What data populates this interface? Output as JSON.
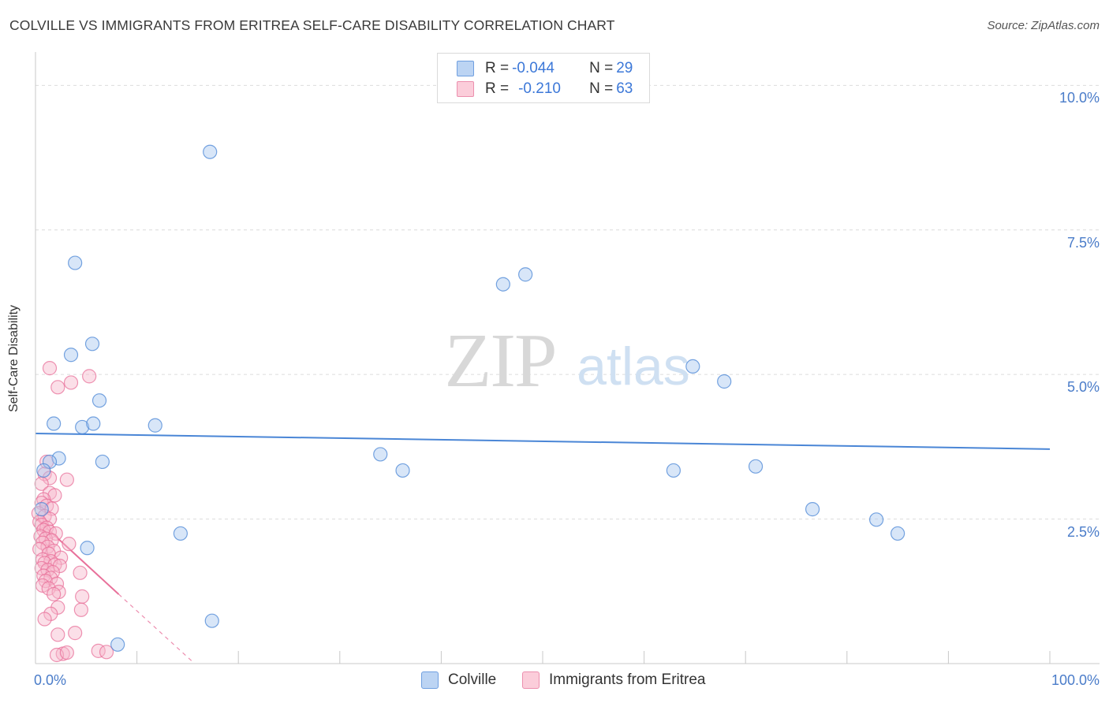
{
  "title": "COLVILLE VS IMMIGRANTS FROM ERITREA SELF-CARE DISABILITY CORRELATION CHART",
  "source": "Source: ZipAtlas.com",
  "watermark": {
    "zip": "ZIP",
    "atlas": "atlas"
  },
  "legend": {
    "rows": [
      {
        "r_label": "R = ",
        "r_value": "-0.044",
        "n_label": "N = ",
        "n_value": "29",
        "color": "#a9c8f0"
      },
      {
        "r_label": "R = ",
        "r_value": "-0.210",
        "n_label": "N = ",
        "n_value": "63",
        "color": "#f7b8cb"
      }
    ]
  },
  "bottom_legend": [
    {
      "label": "Colville",
      "color": "#a9c8f0"
    },
    {
      "label": "Immigrants from Eritrea",
      "color": "#f7b8cb"
    }
  ],
  "chart_data": {
    "type": "scatter",
    "title": "COLVILLE VS IMMIGRANTS FROM ERITREA SELF-CARE DISABILITY CORRELATION CHART",
    "xlabel": "",
    "ylabel": "Self-Care Disability",
    "xlim": [
      0,
      100
    ],
    "ylim": [
      0,
      10.4
    ],
    "x_tick_labels": [
      "0.0%",
      "100.0%"
    ],
    "y_ticks": [
      2.5,
      5.0,
      7.5,
      10.0
    ],
    "y_tick_labels": [
      "2.5%",
      "5.0%",
      "7.5%",
      "10.0%"
    ],
    "grid": true,
    "series": [
      {
        "name": "Colville",
        "color": "#4a86d6",
        "fill": "#a9c8f0",
        "trend": {
          "x": [
            0,
            100
          ],
          "y": [
            3.98,
            3.71
          ]
        },
        "points": [
          [
            17.2,
            8.85
          ],
          [
            3.9,
            6.93
          ],
          [
            46.1,
            6.56
          ],
          [
            48.3,
            6.73
          ],
          [
            3.5,
            5.34
          ],
          [
            5.6,
            5.53
          ],
          [
            64.8,
            5.14
          ],
          [
            67.9,
            4.88
          ],
          [
            6.3,
            4.55
          ],
          [
            1.8,
            4.15
          ],
          [
            4.6,
            4.09
          ],
          [
            5.7,
            4.15
          ],
          [
            11.8,
            4.12
          ],
          [
            34.0,
            3.62
          ],
          [
            36.2,
            3.34
          ],
          [
            62.9,
            3.34
          ],
          [
            71.0,
            3.41
          ],
          [
            2.3,
            3.55
          ],
          [
            6.6,
            3.49
          ],
          [
            1.4,
            3.49
          ],
          [
            0.8,
            3.34
          ],
          [
            0.6,
            2.67
          ],
          [
            76.6,
            2.67
          ],
          [
            82.9,
            2.49
          ],
          [
            85.0,
            2.25
          ],
          [
            14.3,
            2.25
          ],
          [
            5.1,
            2.0
          ],
          [
            17.4,
            0.74
          ],
          [
            8.1,
            0.33
          ]
        ]
      },
      {
        "name": "Immigrants from Eritrea",
        "color": "#e8709a",
        "fill": "#f7b8cb",
        "trend": {
          "x": [
            0,
            8.2
          ],
          "y": [
            2.52,
            1.2
          ]
        },
        "trend_dashed": {
          "x": [
            8.2,
            15.5
          ],
          "y": [
            1.2,
            0.03
          ]
        },
        "points": [
          [
            1.4,
            5.11
          ],
          [
            5.3,
            4.97
          ],
          [
            3.5,
            4.86
          ],
          [
            2.2,
            4.78
          ],
          [
            1.1,
            3.49
          ],
          [
            0.9,
            3.28
          ],
          [
            1.4,
            3.21
          ],
          [
            3.1,
            3.18
          ],
          [
            0.6,
            3.11
          ],
          [
            1.4,
            2.95
          ],
          [
            1.9,
            2.91
          ],
          [
            0.8,
            2.84
          ],
          [
            0.6,
            2.78
          ],
          [
            1.1,
            2.73
          ],
          [
            1.6,
            2.68
          ],
          [
            0.3,
            2.6
          ],
          [
            0.9,
            2.55
          ],
          [
            1.4,
            2.5
          ],
          [
            0.4,
            2.45
          ],
          [
            0.6,
            2.4
          ],
          [
            1.1,
            2.35
          ],
          [
            0.8,
            2.31
          ],
          [
            1.4,
            2.28
          ],
          [
            2.0,
            2.25
          ],
          [
            0.5,
            2.2
          ],
          [
            1.0,
            2.16
          ],
          [
            1.6,
            2.13
          ],
          [
            0.7,
            2.09
          ],
          [
            3.3,
            2.07
          ],
          [
            1.2,
            2.02
          ],
          [
            0.4,
            1.98
          ],
          [
            1.8,
            1.95
          ],
          [
            1.3,
            1.9
          ],
          [
            2.5,
            1.83
          ],
          [
            0.7,
            1.8
          ],
          [
            1.5,
            1.77
          ],
          [
            0.9,
            1.74
          ],
          [
            1.9,
            1.71
          ],
          [
            2.4,
            1.69
          ],
          [
            0.6,
            1.65
          ],
          [
            1.2,
            1.62
          ],
          [
            1.7,
            1.58
          ],
          [
            4.4,
            1.57
          ],
          [
            0.8,
            1.52
          ],
          [
            1.5,
            1.48
          ],
          [
            1.0,
            1.43
          ],
          [
            2.1,
            1.38
          ],
          [
            0.7,
            1.35
          ],
          [
            1.3,
            1.3
          ],
          [
            2.3,
            1.24
          ],
          [
            1.8,
            1.2
          ],
          [
            4.6,
            1.16
          ],
          [
            2.2,
            0.97
          ],
          [
            4.5,
            0.93
          ],
          [
            1.5,
            0.86
          ],
          [
            0.9,
            0.77
          ],
          [
            2.2,
            0.5
          ],
          [
            3.9,
            0.53
          ],
          [
            6.2,
            0.22
          ],
          [
            2.7,
            0.17
          ],
          [
            7.0,
            0.2
          ],
          [
            2.1,
            0.15
          ],
          [
            3.1,
            0.19
          ]
        ]
      }
    ]
  }
}
